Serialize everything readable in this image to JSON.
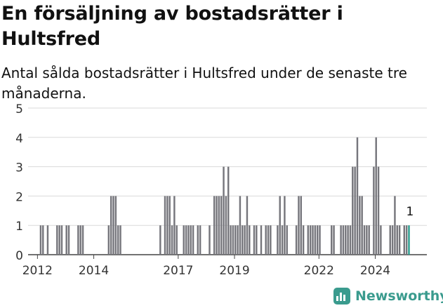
{
  "title": "En försäljning av bostadsrätter i Hultsfred",
  "subtitle": "Antal sålda bostadsrätter i Hultsfred under de senaste tre månaderna.",
  "brand": {
    "name": "Newsworthy",
    "icon": "bar-chart-logo-icon",
    "color": "#3a9b8e"
  },
  "chart_data": {
    "type": "bar",
    "title": "En försäljning av bostadsrätter i Hultsfred",
    "subtitle": "Antal sålda bostadsrätter i Hultsfred under de senaste tre månaderna.",
    "xlabel": "",
    "ylabel": "",
    "ylim": [
      0,
      5
    ],
    "yticks": [
      0,
      1,
      2,
      3,
      4,
      5
    ],
    "xticks": [
      "2012",
      "2014",
      "2017",
      "2019",
      "2022",
      "2024"
    ],
    "grid": true,
    "bar_color": "#76767c",
    "highlight_color": "#2a9d8f",
    "annotation": "1",
    "series": [
      {
        "values": [
          {
            "x": "2012-02",
            "v": 1
          },
          {
            "x": "2012-03",
            "v": 1
          },
          {
            "x": "2012-05",
            "v": 1
          },
          {
            "x": "2012-09",
            "v": 1
          },
          {
            "x": "2012-10",
            "v": 1
          },
          {
            "x": "2012-11",
            "v": 1
          },
          {
            "x": "2013-01",
            "v": 1
          },
          {
            "x": "2013-02",
            "v": 1
          },
          {
            "x": "2013-06",
            "v": 1
          },
          {
            "x": "2013-07",
            "v": 1
          },
          {
            "x": "2013-08",
            "v": 1
          },
          {
            "x": "2014-07",
            "v": 1
          },
          {
            "x": "2014-08",
            "v": 2
          },
          {
            "x": "2014-09",
            "v": 2
          },
          {
            "x": "2014-10",
            "v": 2
          },
          {
            "x": "2014-11",
            "v": 1
          },
          {
            "x": "2014-12",
            "v": 1
          },
          {
            "x": "2016-05",
            "v": 1
          },
          {
            "x": "2016-07",
            "v": 2
          },
          {
            "x": "2016-08",
            "v": 2
          },
          {
            "x": "2016-09",
            "v": 2
          },
          {
            "x": "2016-10",
            "v": 1
          },
          {
            "x": "2016-11",
            "v": 2
          },
          {
            "x": "2016-12",
            "v": 1
          },
          {
            "x": "2017-03",
            "v": 1
          },
          {
            "x": "2017-04",
            "v": 1
          },
          {
            "x": "2017-05",
            "v": 1
          },
          {
            "x": "2017-06",
            "v": 1
          },
          {
            "x": "2017-07",
            "v": 1
          },
          {
            "x": "2017-09",
            "v": 1
          },
          {
            "x": "2017-10",
            "v": 1
          },
          {
            "x": "2018-02",
            "v": 1
          },
          {
            "x": "2018-04",
            "v": 2
          },
          {
            "x": "2018-05",
            "v": 2
          },
          {
            "x": "2018-06",
            "v": 2
          },
          {
            "x": "2018-07",
            "v": 2
          },
          {
            "x": "2018-08",
            "v": 3
          },
          {
            "x": "2018-09",
            "v": 2
          },
          {
            "x": "2018-10",
            "v": 3
          },
          {
            "x": "2018-11",
            "v": 1
          },
          {
            "x": "2018-12",
            "v": 1
          },
          {
            "x": "2019-01",
            "v": 1
          },
          {
            "x": "2019-02",
            "v": 1
          },
          {
            "x": "2019-03",
            "v": 2
          },
          {
            "x": "2019-04",
            "v": 1
          },
          {
            "x": "2019-05",
            "v": 1
          },
          {
            "x": "2019-06",
            "v": 2
          },
          {
            "x": "2019-07",
            "v": 1
          },
          {
            "x": "2019-09",
            "v": 1
          },
          {
            "x": "2019-10",
            "v": 1
          },
          {
            "x": "2019-12",
            "v": 1
          },
          {
            "x": "2020-02",
            "v": 1
          },
          {
            "x": "2020-03",
            "v": 1
          },
          {
            "x": "2020-04",
            "v": 1
          },
          {
            "x": "2020-07",
            "v": 1
          },
          {
            "x": "2020-08",
            "v": 2
          },
          {
            "x": "2020-09",
            "v": 1
          },
          {
            "x": "2020-10",
            "v": 2
          },
          {
            "x": "2020-11",
            "v": 1
          },
          {
            "x": "2021-03",
            "v": 1
          },
          {
            "x": "2021-04",
            "v": 2
          },
          {
            "x": "2021-05",
            "v": 2
          },
          {
            "x": "2021-06",
            "v": 1
          },
          {
            "x": "2021-08",
            "v": 1
          },
          {
            "x": "2021-09",
            "v": 1
          },
          {
            "x": "2021-10",
            "v": 1
          },
          {
            "x": "2021-11",
            "v": 1
          },
          {
            "x": "2021-12",
            "v": 1
          },
          {
            "x": "2022-01",
            "v": 1
          },
          {
            "x": "2022-06",
            "v": 1
          },
          {
            "x": "2022-07",
            "v": 1
          },
          {
            "x": "2022-10",
            "v": 1
          },
          {
            "x": "2022-11",
            "v": 1
          },
          {
            "x": "2022-12",
            "v": 1
          },
          {
            "x": "2023-01",
            "v": 1
          },
          {
            "x": "2023-02",
            "v": 1
          },
          {
            "x": "2023-03",
            "v": 3
          },
          {
            "x": "2023-04",
            "v": 3
          },
          {
            "x": "2023-05",
            "v": 4
          },
          {
            "x": "2023-06",
            "v": 2
          },
          {
            "x": "2023-07",
            "v": 2
          },
          {
            "x": "2023-08",
            "v": 1
          },
          {
            "x": "2023-09",
            "v": 1
          },
          {
            "x": "2023-10",
            "v": 1
          },
          {
            "x": "2023-12",
            "v": 3
          },
          {
            "x": "2024-01",
            "v": 4
          },
          {
            "x": "2024-02",
            "v": 3
          },
          {
            "x": "2024-03",
            "v": 1
          },
          {
            "x": "2024-07",
            "v": 1
          },
          {
            "x": "2024-08",
            "v": 1
          },
          {
            "x": "2024-09",
            "v": 2
          },
          {
            "x": "2024-10",
            "v": 1
          },
          {
            "x": "2024-11",
            "v": 1
          },
          {
            "x": "2025-01",
            "v": 1
          },
          {
            "x": "2025-02",
            "v": 1
          },
          {
            "x": "2025-03",
            "v": 1,
            "highlight": true
          }
        ]
      }
    ]
  }
}
